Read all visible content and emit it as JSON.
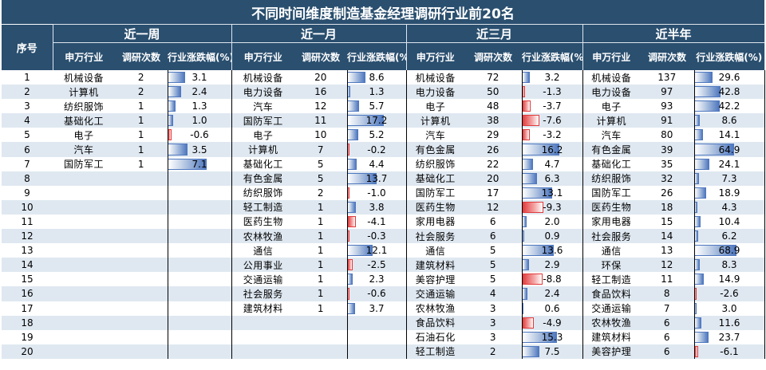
{
  "title": "不同时间维度制造基金经理调研行业前20名",
  "seq_header": "序号",
  "periods": [
    {
      "label": "近一周",
      "col_sector": "申万行业",
      "col_count": "调研次数",
      "col_change": "行业涨跌幅(%)",
      "rows": [
        [
          "机械设备",
          2,
          3.1
        ],
        [
          "计算机",
          2,
          2.4
        ],
        [
          "纺织服饰",
          1,
          1.3
        ],
        [
          "基础化工",
          1,
          1.0
        ],
        [
          "电子",
          1,
          -0.6
        ],
        [
          "汽车",
          1,
          3.5
        ],
        [
          "国防军工",
          1,
          7.1
        ]
      ]
    },
    {
      "label": "近一月",
      "col_sector": "申万行业",
      "col_count": "调研次数",
      "col_change": "行业涨跌幅(%)",
      "rows": [
        [
          "机械设备",
          20,
          8.6
        ],
        [
          "电力设备",
          16,
          1.3
        ],
        [
          "汽车",
          12,
          5.7
        ],
        [
          "国防军工",
          11,
          17.2
        ],
        [
          "电子",
          10,
          5.2
        ],
        [
          "计算机",
          7,
          -0.2
        ],
        [
          "基础化工",
          5,
          4.4
        ],
        [
          "有色金属",
          5,
          13.7
        ],
        [
          "纺织服饰",
          2,
          -1.0
        ],
        [
          "轻工制造",
          1,
          3.8
        ],
        [
          "医药生物",
          1,
          -4.1
        ],
        [
          "农林牧渔",
          1,
          -0.3
        ],
        [
          "通信",
          1,
          12.1
        ],
        [
          "公用事业",
          1,
          -2.5
        ],
        [
          "交通运输",
          1,
          2.3
        ],
        [
          "社会服务",
          1,
          -0.6
        ],
        [
          "建筑材料",
          1,
          3.7
        ]
      ]
    },
    {
      "label": "近三月",
      "col_sector": "申万行业",
      "col_count": "调研次数",
      "col_change": "行业涨跌幅(%)",
      "rows": [
        [
          "机械设备",
          72,
          3.2
        ],
        [
          "电力设备",
          50,
          -1.3
        ],
        [
          "电子",
          48,
          -3.7
        ],
        [
          "计算机",
          38,
          -7.6
        ],
        [
          "汽车",
          29,
          -3.2
        ],
        [
          "有色金属",
          26,
          16.2
        ],
        [
          "纺织服饰",
          22,
          4.7
        ],
        [
          "基础化工",
          20,
          6.3
        ],
        [
          "国防军工",
          17,
          13.1
        ],
        [
          "医药生物",
          12,
          -9.3
        ],
        [
          "家用电器",
          6,
          2.0
        ],
        [
          "社会服务",
          6,
          0.9
        ],
        [
          "通信",
          5,
          13.6
        ],
        [
          "建筑材料",
          5,
          2.9
        ],
        [
          "美容护理",
          5,
          -8.8
        ],
        [
          "交通运输",
          4,
          2.4
        ],
        [
          "农林牧渔",
          3,
          0.6
        ],
        [
          "食品饮料",
          3,
          -4.9
        ],
        [
          "石油石化",
          3,
          15.3
        ],
        [
          "轻工制造",
          2,
          7.5
        ]
      ]
    },
    {
      "label": "近半年",
      "col_sector": "申万行业",
      "col_count": "调研次数",
      "col_change": "行业涨跌幅(%)",
      "rows": [
        [
          "机械设备",
          137,
          29.6
        ],
        [
          "电力设备",
          97,
          42.8
        ],
        [
          "电子",
          93,
          42.2
        ],
        [
          "计算机",
          91,
          8.6
        ],
        [
          "汽车",
          80,
          14.1
        ],
        [
          "有色金属",
          39,
          64.9
        ],
        [
          "基础化工",
          35,
          24.1
        ],
        [
          "纺织服饰",
          32,
          7.3
        ],
        [
          "国防军工",
          26,
          18.9
        ],
        [
          "医药生物",
          18,
          4.3
        ],
        [
          "家用电器",
          15,
          10.4
        ],
        [
          "社会服务",
          14,
          6.2
        ],
        [
          "通信",
          13,
          68.9
        ],
        [
          "环保",
          12,
          8.3
        ],
        [
          "轻工制造",
          11,
          14.9
        ],
        [
          "食品饮料",
          8,
          -2.6
        ],
        [
          "交通运输",
          7,
          3.0
        ],
        [
          "农林牧渔",
          6,
          11.6
        ],
        [
          "建筑材料",
          6,
          23.7
        ],
        [
          "美容护理",
          6,
          -6.1
        ]
      ]
    }
  ],
  "chart_data": {
    "type": "table",
    "title": "不同时间维度制造基金经理调研行业前20名",
    "columns": [
      "序号",
      "申万行业",
      "调研次数",
      "行业涨跌幅(%)"
    ],
    "groups": [
      "近一周",
      "近一月",
      "近三月",
      "近半年"
    ]
  },
  "colors": {
    "header_bg": "#2a4f6f",
    "stripe": "#dfe8f1",
    "pos_bar": "#4f78bf",
    "neg_bar": "#e23a3a"
  }
}
